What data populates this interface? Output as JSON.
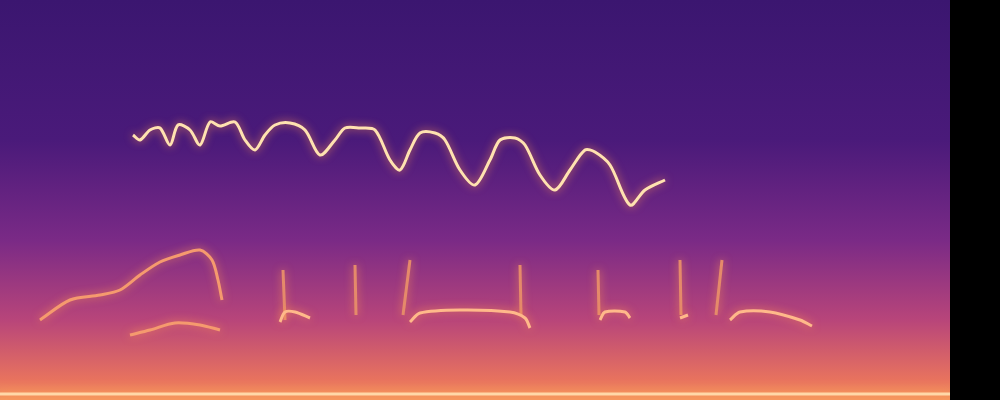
{
  "chart_data": {
    "type": "line",
    "tick_labels": false,
    "grid": false,
    "xlim": [
      0,
      950
    ],
    "ylim": [
      0,
      400
    ],
    "series": [
      {
        "color": "#ffe2b0",
        "x": [
          133,
          140,
          150,
          160,
          170,
          178,
          190,
          200,
          210,
          220,
          235,
          245,
          255,
          265,
          275,
          290,
          305,
          320,
          335,
          345,
          360,
          375,
          390,
          400,
          410,
          420,
          435,
          445,
          460,
          475,
          490,
          500,
          515,
          525,
          540,
          555,
          570,
          585,
          595,
          610,
          630,
          645,
          665
        ],
        "values": [
          265,
          260,
          270,
          272,
          255,
          275,
          270,
          255,
          278,
          274,
          278,
          260,
          250,
          265,
          275,
          277,
          270,
          245,
          260,
          272,
          272,
          270,
          240,
          230,
          250,
          267,
          267,
          260,
          230,
          215,
          240,
          260,
          262,
          255,
          225,
          210,
          230,
          250,
          248,
          235,
          195,
          210,
          220
        ]
      },
      {
        "color": "#f59a6e",
        "x": [
          40,
          70,
          100,
          120,
          140,
          160,
          180,
          200,
          212,
          218,
          222
        ],
        "values": [
          80,
          100,
          105,
          110,
          125,
          138,
          145,
          150,
          140,
          120,
          100
        ]
      },
      {
        "color": "#f59a6e",
        "x": [
          130,
          150,
          175,
          200,
          220
        ],
        "values": [
          65,
          70,
          77,
          75,
          70
        ]
      },
      {
        "color": "#ffb98a",
        "x": [
          280,
          285,
          295,
          310
        ],
        "values": [
          78,
          88,
          88,
          82
        ]
      },
      {
        "color": "#ffb98a",
        "x": [
          410,
          420,
          460,
          510,
          525,
          530
        ],
        "values": [
          78,
          87,
          90,
          88,
          82,
          72
        ]
      },
      {
        "color": "#ffb98a",
        "x": [
          600,
          605,
          625,
          630
        ],
        "values": [
          80,
          88,
          88,
          82
        ]
      },
      {
        "color": "#ffb98a",
        "x": [
          680,
          688
        ],
        "values": [
          82,
          85
        ]
      },
      {
        "color": "#ffb98a",
        "x": [
          730,
          740,
          770,
          800,
          812
        ],
        "values": [
          80,
          88,
          88,
          80,
          74
        ]
      },
      {
        "color": "#e58a6a",
        "x": [
          283,
          285
        ],
        "values": [
          130,
          80
        ]
      },
      {
        "color": "#e58a6a",
        "x": [
          355,
          356
        ],
        "values": [
          135,
          85
        ]
      },
      {
        "color": "#e58a6a",
        "x": [
          410,
          403
        ],
        "values": [
          140,
          85
        ]
      },
      {
        "color": "#e58a6a",
        "x": [
          520,
          521
        ],
        "values": [
          135,
          85
        ]
      },
      {
        "color": "#e58a6a",
        "x": [
          598,
          599
        ],
        "values": [
          130,
          85
        ]
      },
      {
        "color": "#e58a6a",
        "x": [
          680,
          681
        ],
        "values": [
          140,
          85
        ]
      },
      {
        "color": "#e58a6a",
        "x": [
          722,
          716
        ],
        "values": [
          140,
          85
        ]
      },
      {
        "color": "#ffd8a8",
        "x": [
          0,
          950
        ],
        "values": [
          6,
          6
        ]
      }
    ]
  }
}
